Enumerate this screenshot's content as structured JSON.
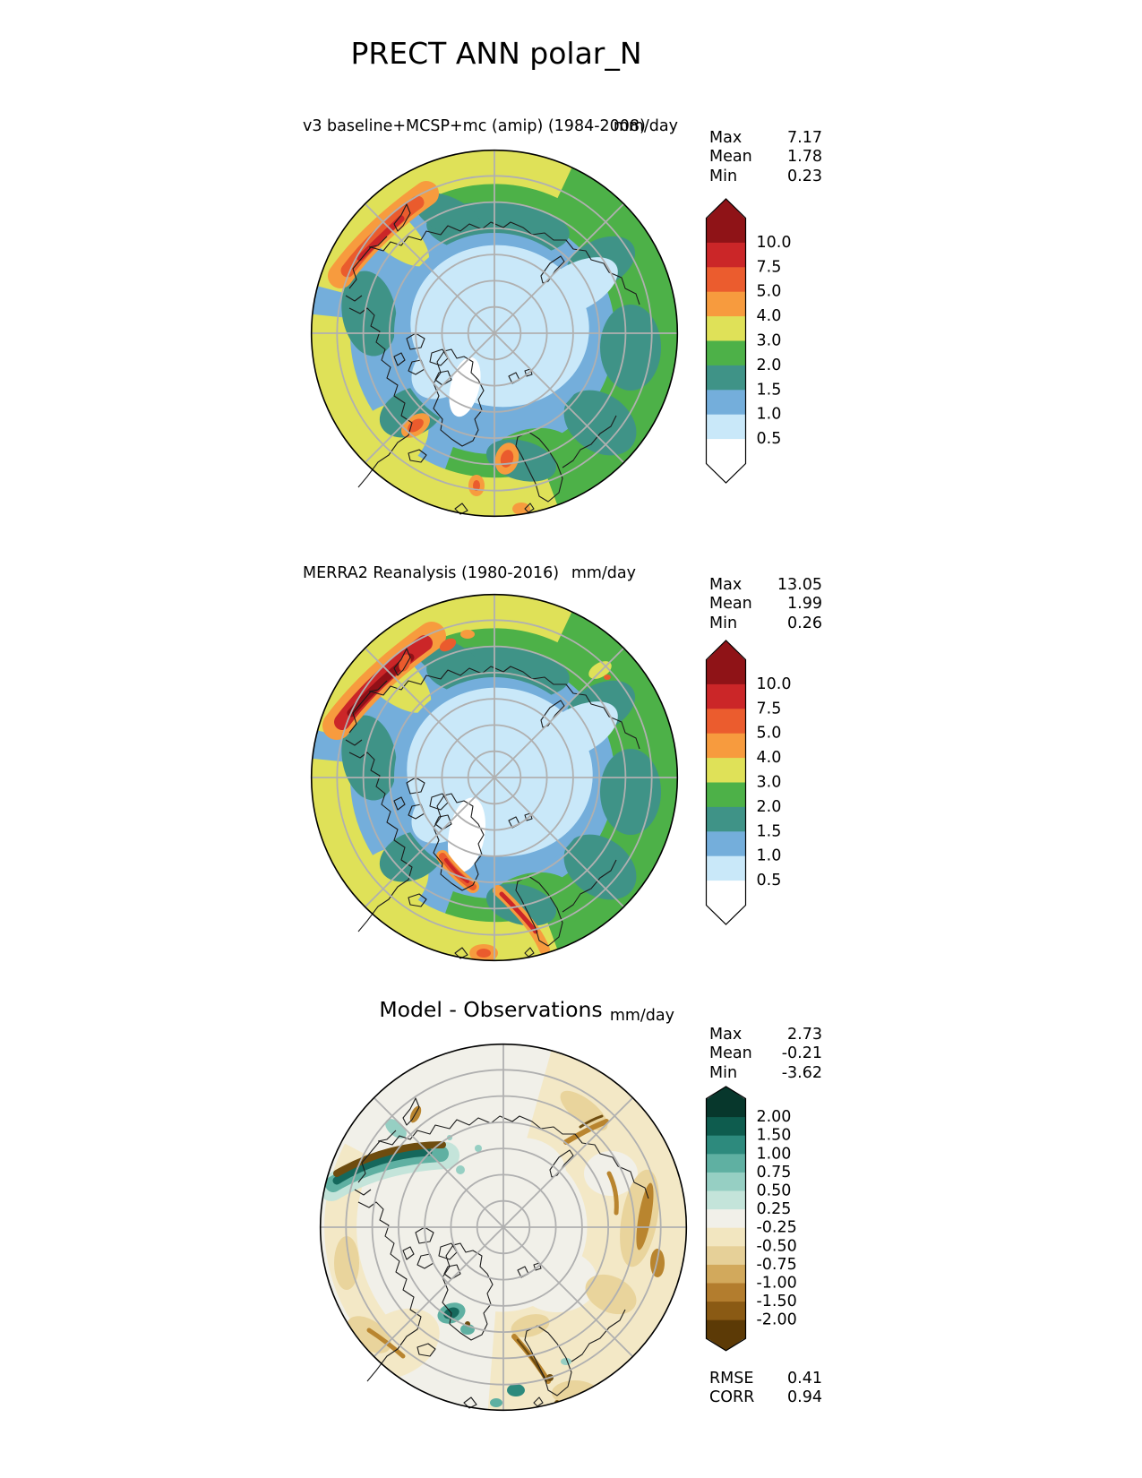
{
  "title": "PRECT ANN polar_N",
  "panels": [
    {
      "title": "v3 baseline+MCSP+mc (amip) (1984-2008)",
      "unit": "mm/day",
      "stats": [
        {
          "label": "Max",
          "value": "7.17"
        },
        {
          "label": "Mean",
          "value": "1.78"
        },
        {
          "label": "Min",
          "value": "0.23"
        }
      ],
      "colorbar": {
        "labels": [
          "10.0",
          "7.5",
          "5.0",
          "4.0",
          "3.0",
          "2.0",
          "1.5",
          "1.0",
          "0.5"
        ],
        "colors": [
          "#8f1317",
          "#cb2628",
          "#eb5c2e",
          "#f79b3e",
          "#dfe158",
          "#4db148",
          "#3f9387",
          "#74aedb",
          "#c9e8f9",
          "#ffffff"
        ]
      }
    },
    {
      "title": "MERRA2 Reanalysis (1980-2016)",
      "unit": "mm/day",
      "stats": [
        {
          "label": "Max",
          "value": "13.05"
        },
        {
          "label": "Mean",
          "value": "1.99"
        },
        {
          "label": "Min",
          "value": "0.26"
        }
      ],
      "colorbar": {
        "labels": [
          "10.0",
          "7.5",
          "5.0",
          "4.0",
          "3.0",
          "2.0",
          "1.5",
          "1.0",
          "0.5"
        ],
        "colors": [
          "#8f1317",
          "#cb2628",
          "#eb5c2e",
          "#f79b3e",
          "#dfe158",
          "#4db148",
          "#3f9387",
          "#74aedb",
          "#c9e8f9",
          "#ffffff"
        ]
      }
    },
    {
      "title": "Model - Observations",
      "unit": "mm/day",
      "stats": [
        {
          "label": "Max",
          "value": "2.73"
        },
        {
          "label": "Mean",
          "value": "-0.21"
        },
        {
          "label": "Min",
          "value": "-3.62"
        }
      ],
      "colorbar": {
        "labels": [
          "2.00",
          "1.50",
          "1.00",
          "0.75",
          "0.50",
          "0.25",
          "-0.25",
          "-0.50",
          "-0.75",
          "-1.00",
          "-1.50",
          "-2.00"
        ],
        "colors": [
          "#07372c",
          "#0e5c4e",
          "#2d8a7d",
          "#5fb0a2",
          "#96cfc3",
          "#c4e4da",
          "#f1f0e9",
          "#f2e6c0",
          "#e6d098",
          "#d2a95c",
          "#b37d2e",
          "#8a5a14",
          "#5c3a06"
        ]
      }
    }
  ],
  "footer_stats": [
    {
      "label": "RMSE",
      "value": "0.41"
    },
    {
      "label": "CORR",
      "value": "0.94"
    }
  ],
  "chart_data": [
    {
      "type": "heatmap",
      "projection": "north polar stereographic",
      "panel": "top",
      "title": "v3 baseline+MCSP+mc (amip) (1984-2008)",
      "units": "mm/day",
      "levels": [
        0.5,
        1.0,
        1.5,
        2.0,
        3.0,
        4.0,
        5.0,
        7.5,
        10.0
      ],
      "palette": [
        "#8f1317",
        "#cb2628",
        "#eb5c2e",
        "#f79b3e",
        "#dfe158",
        "#4db148",
        "#3f9387",
        "#74aedb",
        "#c9e8f9",
        "#ffffff"
      ],
      "stats": {
        "max": 7.17,
        "mean": 1.78,
        "min": 0.23
      }
    },
    {
      "type": "heatmap",
      "projection": "north polar stereographic",
      "panel": "middle",
      "title": "MERRA2 Reanalysis (1980-2016)",
      "units": "mm/day",
      "levels": [
        0.5,
        1.0,
        1.5,
        2.0,
        3.0,
        4.0,
        5.0,
        7.5,
        10.0
      ],
      "palette": [
        "#8f1317",
        "#cb2628",
        "#eb5c2e",
        "#f79b3e",
        "#dfe158",
        "#4db148",
        "#3f9387",
        "#74aedb",
        "#c9e8f9",
        "#ffffff"
      ],
      "stats": {
        "max": 13.05,
        "mean": 1.99,
        "min": 0.26
      }
    },
    {
      "type": "heatmap",
      "projection": "north polar stereographic",
      "panel": "bottom",
      "title": "Model - Observations",
      "units": "mm/day",
      "levels": [
        -2.0,
        -1.5,
        -1.0,
        -0.75,
        -0.5,
        -0.25,
        0.25,
        0.5,
        0.75,
        1.0,
        1.5,
        2.0
      ],
      "palette": [
        "#07372c",
        "#0e5c4e",
        "#2d8a7d",
        "#5fb0a2",
        "#96cfc3",
        "#c4e4da",
        "#f1f0e9",
        "#f2e6c0",
        "#e6d098",
        "#d2a95c",
        "#b37d2e",
        "#8a5a14",
        "#5c3a06"
      ],
      "stats": {
        "max": 2.73,
        "mean": -0.21,
        "min": -3.62
      },
      "rmse": 0.41,
      "corr": 0.94
    }
  ]
}
